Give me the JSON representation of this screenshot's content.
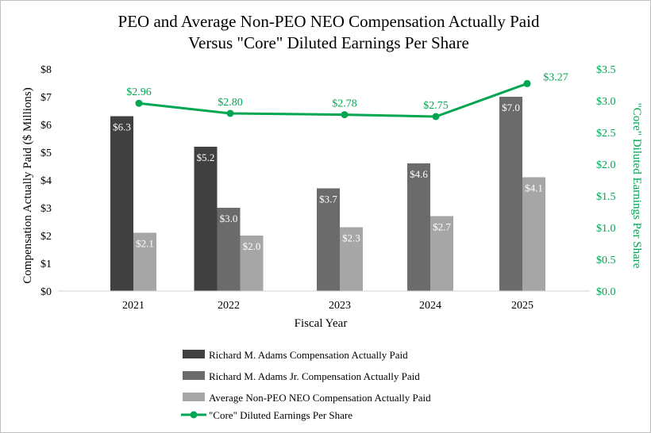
{
  "chart_data": {
    "type": "bar",
    "title_line1": "PEO and Average Non-PEO NEO Compensation Actually Paid",
    "title_line2": "Versus \"Core\" Diluted Earnings Per Share",
    "xlabel": "Fiscal Year",
    "ylabel": "Compensation Actually Paid ($ Millions)",
    "ylabel_right": "\"Core\" Diluted Earnings Per Share",
    "ylim": [
      0,
      8
    ],
    "ylim_right": [
      0,
      3.5
    ],
    "left_ticks": [
      "$0",
      "$1",
      "$2",
      "$3",
      "$4",
      "$5",
      "$6",
      "$7",
      "$8"
    ],
    "right_ticks": [
      "$0.0",
      "$0.5",
      "$1.0",
      "$1.5",
      "$2.0",
      "$2.5",
      "$3.0",
      "$3.5"
    ],
    "categories": [
      "2021",
      "2022",
      "2023",
      "2024",
      "2025"
    ],
    "series": [
      {
        "name": "Richard M. Adams Compensation Actually Paid",
        "color": "#404040",
        "values": [
          6.3,
          5.2,
          null,
          null,
          null
        ],
        "labels": [
          "$6.3",
          "$5.2",
          "",
          "",
          ""
        ]
      },
      {
        "name": "Richard M. Adams Jr. Compensation Actually Paid",
        "color": "#6b6b6b",
        "values": [
          null,
          3.0,
          3.7,
          4.6,
          7.0
        ],
        "labels": [
          "",
          "$3.0",
          "$3.7",
          "$4.6",
          "$7.0"
        ]
      },
      {
        "name": "Average Non-PEO NEO Compensation Actually Paid",
        "color": "#a6a6a6",
        "values": [
          2.1,
          2.0,
          2.3,
          2.7,
          4.1
        ],
        "labels": [
          "$2.1",
          "$2.0",
          "$2.3",
          "$2.7",
          "$4.1"
        ]
      }
    ],
    "line_series": {
      "name": "\"Core\" Diluted Earnings Per Share",
      "color": "#00a651",
      "axis": "right",
      "values": [
        2.96,
        2.8,
        2.78,
        2.75,
        3.27
      ],
      "labels": [
        "$2.96",
        "$2.80",
        "$2.78",
        "$2.75",
        "$3.27"
      ]
    },
    "legend_position": "bottom"
  }
}
